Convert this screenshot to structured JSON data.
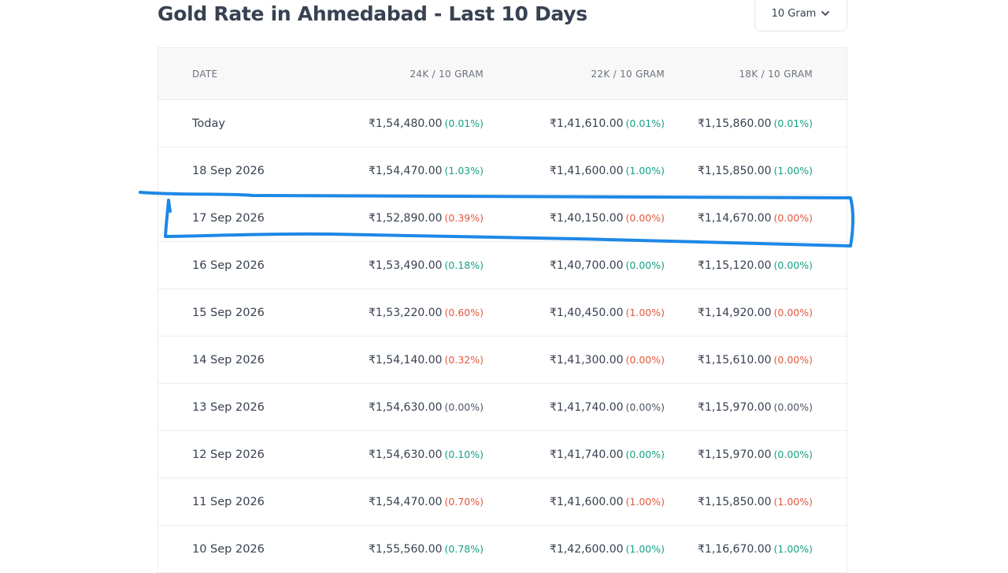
{
  "page": {
    "title": "Gold Rate in Ahmedabad - Last 10 Days",
    "unit_selector": "10 Gram",
    "colors": {
      "up": "#16a085",
      "down": "#e2583e",
      "flat": "#4b5563",
      "annotation": "#1e88e5"
    }
  },
  "table": {
    "columns": [
      "DATE",
      "24K / 10 GRAM",
      "22K / 10 GRAM",
      "18K / 10 GRAM"
    ],
    "rows": [
      {
        "date": "Today",
        "k24": {
          "price": "₹1,54,480.00",
          "change": "(0.01%)",
          "dir": "up"
        },
        "k22": {
          "price": "₹1,41,610.00",
          "change": "(0.01%)",
          "dir": "up"
        },
        "k18": {
          "price": "₹1,15,860.00",
          "change": "(0.01%)",
          "dir": "up"
        }
      },
      {
        "date": "18 Sep 2026",
        "k24": {
          "price": "₹1,54,470.00",
          "change": "(1.03%)",
          "dir": "up"
        },
        "k22": {
          "price": "₹1,41,600.00",
          "change": "(1.00%)",
          "dir": "up"
        },
        "k18": {
          "price": "₹1,15,850.00",
          "change": "(1.00%)",
          "dir": "up"
        }
      },
      {
        "date": "17 Sep 2026",
        "k24": {
          "price": "₹1,52,890.00",
          "change": "(0.39%)",
          "dir": "down"
        },
        "k22": {
          "price": "₹1,40,150.00",
          "change": "(0.00%)",
          "dir": "down"
        },
        "k18": {
          "price": "₹1,14,670.00",
          "change": "(0.00%)",
          "dir": "down"
        }
      },
      {
        "date": "16 Sep 2026",
        "k24": {
          "price": "₹1,53,490.00",
          "change": "(0.18%)",
          "dir": "up"
        },
        "k22": {
          "price": "₹1,40,700.00",
          "change": "(0.00%)",
          "dir": "up"
        },
        "k18": {
          "price": "₹1,15,120.00",
          "change": "(0.00%)",
          "dir": "up"
        }
      },
      {
        "date": "15 Sep 2026",
        "k24": {
          "price": "₹1,53,220.00",
          "change": "(0.60%)",
          "dir": "down"
        },
        "k22": {
          "price": "₹1,40,450.00",
          "change": "(1.00%)",
          "dir": "down"
        },
        "k18": {
          "price": "₹1,14,920.00",
          "change": "(0.00%)",
          "dir": "down"
        }
      },
      {
        "date": "14 Sep 2026",
        "k24": {
          "price": "₹1,54,140.00",
          "change": "(0.32%)",
          "dir": "down"
        },
        "k22": {
          "price": "₹1,41,300.00",
          "change": "(0.00%)",
          "dir": "down"
        },
        "k18": {
          "price": "₹1,15,610.00",
          "change": "(0.00%)",
          "dir": "down"
        }
      },
      {
        "date": "13 Sep 2026",
        "k24": {
          "price": "₹1,54,630.00",
          "change": "(0.00%)",
          "dir": "flat"
        },
        "k22": {
          "price": "₹1,41,740.00",
          "change": "(0.00%)",
          "dir": "flat"
        },
        "k18": {
          "price": "₹1,15,970.00",
          "change": "(0.00%)",
          "dir": "flat"
        }
      },
      {
        "date": "12 Sep 2026",
        "k24": {
          "price": "₹1,54,630.00",
          "change": "(0.10%)",
          "dir": "up"
        },
        "k22": {
          "price": "₹1,41,740.00",
          "change": "(0.00%)",
          "dir": "up"
        },
        "k18": {
          "price": "₹1,15,970.00",
          "change": "(0.00%)",
          "dir": "up"
        }
      },
      {
        "date": "11 Sep 2026",
        "k24": {
          "price": "₹1,54,470.00",
          "change": "(0.70%)",
          "dir": "down"
        },
        "k22": {
          "price": "₹1,41,600.00",
          "change": "(1.00%)",
          "dir": "down"
        },
        "k18": {
          "price": "₹1,15,850.00",
          "change": "(1.00%)",
          "dir": "down"
        }
      },
      {
        "date": "10 Sep 2026",
        "k24": {
          "price": "₹1,55,560.00",
          "change": "(0.78%)",
          "dir": "up"
        },
        "k22": {
          "price": "₹1,42,600.00",
          "change": "(1.00%)",
          "dir": "up"
        },
        "k18": {
          "price": "₹1,16,670.00",
          "change": "(1.00%)",
          "dir": "up"
        }
      }
    ]
  }
}
